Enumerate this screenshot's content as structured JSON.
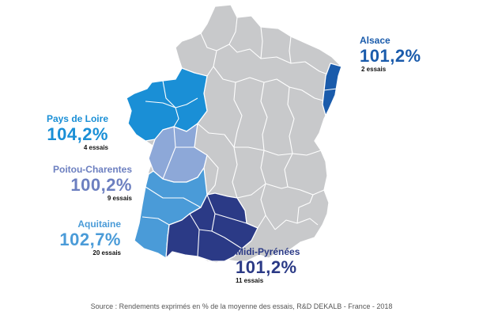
{
  "colors": {
    "base_region": "#c8c9cb",
    "pays_de_loire": "#1a8fd6",
    "poitou_charentes": "#8da8d8",
    "aquitaine": "#4a9bd8",
    "midi_pyrenees": "#2b3a86",
    "alsace": "#1a5bab",
    "borders": "#ffffff"
  },
  "regions": [
    {
      "key": "alsace",
      "name": "Alsace",
      "value": "101,2%",
      "trials": "2 essais",
      "color": "#1a5bab"
    },
    {
      "key": "pays_de_loire",
      "name": "Pays de Loire",
      "value": "104,2%",
      "trials": "4 essais",
      "color": "#1a8fd6"
    },
    {
      "key": "poitou_charentes",
      "name": "Poitou-Charentes",
      "value": "100,2%",
      "trials": "9 essais",
      "color": "#6c7fc0"
    },
    {
      "key": "aquitaine",
      "name": "Aquitaine",
      "value": "102,7%",
      "trials": "20 essais",
      "color": "#4a9bd8"
    },
    {
      "key": "midi_pyrenees",
      "name": "Midi-Pyrénées",
      "value": "101,2%",
      "trials": "11 essais",
      "color": "#2b3a86"
    }
  ],
  "source": "Source : Rendements exprimés en % de la moyenne des essais, R&D DEKALB - France - 2018"
}
